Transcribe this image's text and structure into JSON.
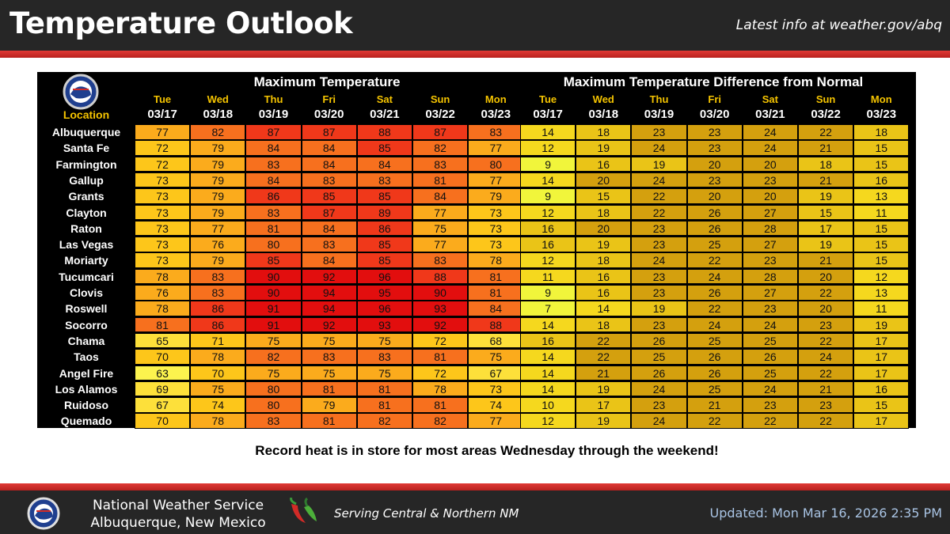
{
  "header": {
    "title": "Temperature Outlook",
    "latest_info": "Latest info at weather.gov/abq"
  },
  "table": {
    "location_header": "Location",
    "max_title": "Maximum Temperature",
    "diff_title": "Maximum Temperature Difference from Normal",
    "days": [
      "Tue",
      "Wed",
      "Thu",
      "Fri",
      "Sat",
      "Sun",
      "Mon"
    ],
    "dates": [
      "03/17",
      "03/18",
      "03/19",
      "03/20",
      "03/21",
      "03/22",
      "03/23"
    ],
    "rows": [
      {
        "location": "Albuquerque",
        "max": [
          77,
          82,
          87,
          87,
          88,
          87,
          83
        ],
        "diff": [
          14,
          18,
          23,
          23,
          24,
          22,
          18
        ]
      },
      {
        "location": "Santa Fe",
        "max": [
          72,
          79,
          84,
          84,
          85,
          82,
          77
        ],
        "diff": [
          12,
          19,
          24,
          23,
          24,
          21,
          15
        ]
      },
      {
        "location": "Farmington",
        "max": [
          72,
          79,
          83,
          84,
          84,
          83,
          80
        ],
        "diff": [
          9,
          16,
          19,
          20,
          20,
          18,
          15
        ]
      },
      {
        "location": "Gallup",
        "max": [
          73,
          79,
          84,
          83,
          83,
          81,
          77
        ],
        "diff": [
          14,
          20,
          24,
          23,
          23,
          21,
          16
        ]
      },
      {
        "location": "Grants",
        "max": [
          73,
          79,
          86,
          85,
          85,
          84,
          79
        ],
        "diff": [
          9,
          15,
          22,
          20,
          20,
          19,
          13
        ]
      },
      {
        "location": "Clayton",
        "max": [
          73,
          79,
          83,
          87,
          89,
          77,
          73
        ],
        "diff": [
          12,
          18,
          22,
          26,
          27,
          15,
          11
        ]
      },
      {
        "location": "Raton",
        "max": [
          73,
          77,
          81,
          84,
          86,
          75,
          73
        ],
        "diff": [
          16,
          20,
          23,
          26,
          28,
          17,
          15
        ]
      },
      {
        "location": "Las Vegas",
        "max": [
          73,
          76,
          80,
          83,
          85,
          77,
          73
        ],
        "diff": [
          16,
          19,
          23,
          25,
          27,
          19,
          15
        ]
      },
      {
        "location": "Moriarty",
        "max": [
          73,
          79,
          85,
          84,
          85,
          83,
          78
        ],
        "diff": [
          12,
          18,
          24,
          22,
          23,
          21,
          15
        ]
      },
      {
        "location": "Tucumcari",
        "max": [
          78,
          83,
          90,
          92,
          96,
          88,
          81
        ],
        "diff": [
          11,
          16,
          23,
          24,
          28,
          20,
          12
        ]
      },
      {
        "location": "Clovis",
        "max": [
          76,
          83,
          90,
          94,
          95,
          90,
          81
        ],
        "diff": [
          9,
          16,
          23,
          26,
          27,
          22,
          13
        ]
      },
      {
        "location": "Roswell",
        "max": [
          78,
          86,
          91,
          94,
          96,
          93,
          84
        ],
        "diff": [
          7,
          14,
          19,
          22,
          23,
          20,
          11
        ]
      },
      {
        "location": "Socorro",
        "max": [
          81,
          86,
          91,
          92,
          93,
          92,
          88
        ],
        "diff": [
          14,
          18,
          23,
          24,
          24,
          23,
          19
        ]
      },
      {
        "location": "Chama",
        "max": [
          65,
          71,
          75,
          75,
          75,
          72,
          68
        ],
        "diff": [
          16,
          22,
          26,
          25,
          25,
          22,
          17
        ]
      },
      {
        "location": "Taos",
        "max": [
          70,
          78,
          82,
          83,
          83,
          81,
          75
        ],
        "diff": [
          14,
          22,
          25,
          26,
          26,
          24,
          17
        ]
      },
      {
        "location": "Angel Fire",
        "max": [
          63,
          70,
          75,
          75,
          75,
          72,
          67
        ],
        "diff": [
          14,
          21,
          26,
          26,
          25,
          22,
          17
        ]
      },
      {
        "location": "Los Alamos",
        "max": [
          69,
          75,
          80,
          81,
          81,
          78,
          73
        ],
        "diff": [
          14,
          19,
          24,
          25,
          24,
          21,
          16
        ]
      },
      {
        "location": "Ruidoso",
        "max": [
          67,
          74,
          80,
          79,
          81,
          81,
          74
        ],
        "diff": [
          10,
          17,
          23,
          21,
          23,
          23,
          15
        ]
      },
      {
        "location": "Quemado",
        "max": [
          70,
          78,
          83,
          81,
          82,
          82,
          77
        ],
        "diff": [
          12,
          19,
          24,
          22,
          22,
          22,
          17
        ]
      }
    ]
  },
  "caption": "Record heat is in store for most areas Wednesday through the weekend!",
  "footer": {
    "org_line1": "National Weather Service",
    "org_line2": "Albuquerque, New Mexico",
    "serving": "Serving Central & Northern NM",
    "updated": "Updated: Mon Mar 16, 2026 2:35 PM"
  },
  "colors": {
    "header_bg": "#262626",
    "accent_red": "#d22b27",
    "day_label": "#f5c400",
    "updated_text": "#a9c4e4"
  },
  "icons": {
    "nws_logo": "nws-logo-icon",
    "chile": "chile-pepper-icon"
  }
}
